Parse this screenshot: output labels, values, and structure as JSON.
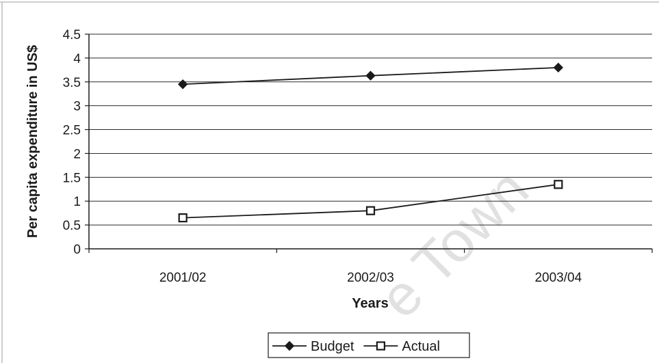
{
  "chart_data": {
    "type": "line",
    "categories": [
      "2001/02",
      "2002/03",
      "2003/04"
    ],
    "series": [
      {
        "name": "Budget",
        "values": [
          3.45,
          3.63,
          3.8
        ],
        "marker": "filled-diamond",
        "color": "#1a1a1a"
      },
      {
        "name": "Actual",
        "values": [
          0.65,
          0.8,
          1.35
        ],
        "marker": "open-square",
        "color": "#1a1a1a"
      }
    ],
    "title": "",
    "xlabel": "Years",
    "ylabel": "Per capita expenditure in US$",
    "ylim": [
      0,
      4.5
    ],
    "yticks": [
      "0",
      "0.5",
      "1",
      "1.5",
      "2",
      "2.5",
      "3",
      "3.5",
      "4",
      "4.5"
    ],
    "grid": true,
    "legend_position": "bottom-center"
  },
  "watermark": "e Town"
}
